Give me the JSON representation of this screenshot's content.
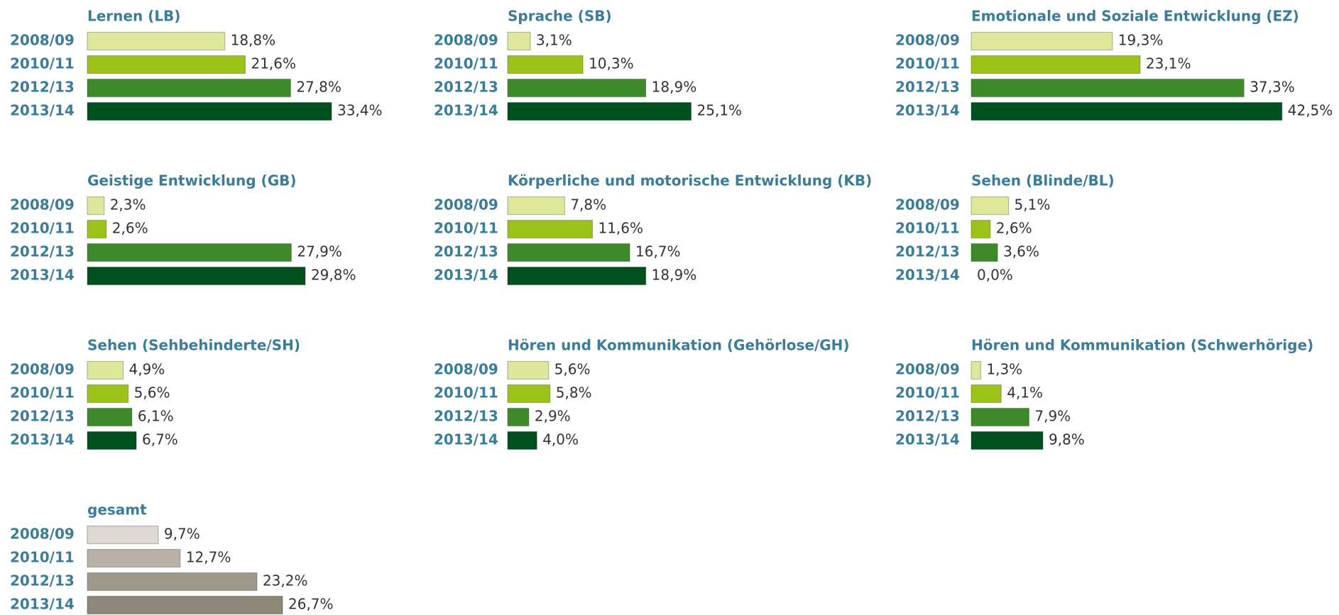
{
  "chart_data": [
    {
      "type": "bar",
      "title": "Lernen (LB)",
      "categories": [
        "2008/09",
        "2010/11",
        "2012/13",
        "2013/14"
      ],
      "values": [
        18.8,
        21.6,
        27.8,
        33.4
      ],
      "value_labels": [
        "18,8%",
        "21,6%",
        "27,8%",
        "33,4%"
      ],
      "colors": [
        "#dfe89a",
        "#9bc31a",
        "#3f8a2a",
        "#00501f"
      ]
    },
    {
      "type": "bar",
      "title": "Sprache (SB)",
      "categories": [
        "2008/09",
        "2010/11",
        "2012/13",
        "2013/14"
      ],
      "values": [
        3.1,
        10.3,
        18.9,
        25.1
      ],
      "value_labels": [
        "3,1%",
        "10,3%",
        "18,9%",
        "25,1%"
      ],
      "colors": [
        "#dfe89a",
        "#9bc31a",
        "#3f8a2a",
        "#00501f"
      ]
    },
    {
      "type": "bar",
      "title": "Emotionale und Soziale Entwicklung (EZ)",
      "categories": [
        "2008/09",
        "2010/11",
        "2012/13",
        "2013/14"
      ],
      "values": [
        19.3,
        23.1,
        37.3,
        42.5
      ],
      "value_labels": [
        "19,3%",
        "23,1%",
        "37,3%",
        "42,5%"
      ],
      "colors": [
        "#dfe89a",
        "#9bc31a",
        "#3f8a2a",
        "#00501f"
      ]
    },
    {
      "type": "bar",
      "title": "Geistige Entwicklung (GB)",
      "categories": [
        "2008/09",
        "2010/11",
        "2012/13",
        "2013/14"
      ],
      "values": [
        2.3,
        2.6,
        27.9,
        29.8
      ],
      "value_labels": [
        "2,3%",
        "2,6%",
        "27,9%",
        "29,8%"
      ],
      "colors": [
        "#dfe89a",
        "#9bc31a",
        "#3f8a2a",
        "#00501f"
      ]
    },
    {
      "type": "bar",
      "title": "Körperliche und motorische Entwicklung (KB)",
      "categories": [
        "2008/09",
        "2010/11",
        "2012/13",
        "2013/14"
      ],
      "values": [
        7.8,
        11.6,
        16.7,
        18.9
      ],
      "value_labels": [
        "7,8%",
        "11,6%",
        "16,7%",
        "18,9%"
      ],
      "colors": [
        "#dfe89a",
        "#9bc31a",
        "#3f8a2a",
        "#00501f"
      ]
    },
    {
      "type": "bar",
      "title": "Sehen (Blinde/BL)",
      "categories": [
        "2008/09",
        "2010/11",
        "2012/13",
        "2013/14"
      ],
      "values": [
        5.1,
        2.6,
        3.6,
        0.0
      ],
      "value_labels": [
        "5,1%",
        "2,6%",
        "3,6%",
        "0,0%"
      ],
      "colors": [
        "#dfe89a",
        "#9bc31a",
        "#3f8a2a",
        "#00501f"
      ]
    },
    {
      "type": "bar",
      "title": "Sehen (Sehbehinderte/SH)",
      "categories": [
        "2008/09",
        "2010/11",
        "2012/13",
        "2013/14"
      ],
      "values": [
        4.9,
        5.6,
        6.1,
        6.7
      ],
      "value_labels": [
        "4,9%",
        "5,6%",
        "6,1%",
        "6,7%"
      ],
      "colors": [
        "#dfe89a",
        "#9bc31a",
        "#3f8a2a",
        "#00501f"
      ]
    },
    {
      "type": "bar",
      "title": "Hören und Kommunikation (Gehörlose/GH)",
      "categories": [
        "2008/09",
        "2010/11",
        "2012/13",
        "2013/14"
      ],
      "values": [
        5.6,
        5.8,
        2.9,
        4.0
      ],
      "value_labels": [
        "5,6%",
        "5,8%",
        "2,9%",
        "4,0%"
      ],
      "colors": [
        "#dfe89a",
        "#9bc31a",
        "#3f8a2a",
        "#00501f"
      ]
    },
    {
      "type": "bar",
      "title": "Hören und Kommunikation (Schwerhörige)",
      "categories": [
        "2008/09",
        "2010/11",
        "2012/13",
        "2013/14"
      ],
      "values": [
        1.3,
        4.1,
        7.9,
        9.8
      ],
      "value_labels": [
        "1,3%",
        "4,1%",
        "7,9%",
        "9,8%"
      ],
      "colors": [
        "#dfe89a",
        "#9bc31a",
        "#3f8a2a",
        "#00501f"
      ]
    },
    {
      "type": "bar",
      "title": "gesamt",
      "categories": [
        "2008/09",
        "2010/11",
        "2012/13",
        "2013/14"
      ],
      "values": [
        9.7,
        12.7,
        23.2,
        26.7
      ],
      "value_labels": [
        "9,7%",
        "12,7%",
        "23,2%",
        "26,7%"
      ],
      "colors": [
        "#dcd9d3",
        "#b7b1a6",
        "#a0998b",
        "#8e8676"
      ]
    }
  ]
}
